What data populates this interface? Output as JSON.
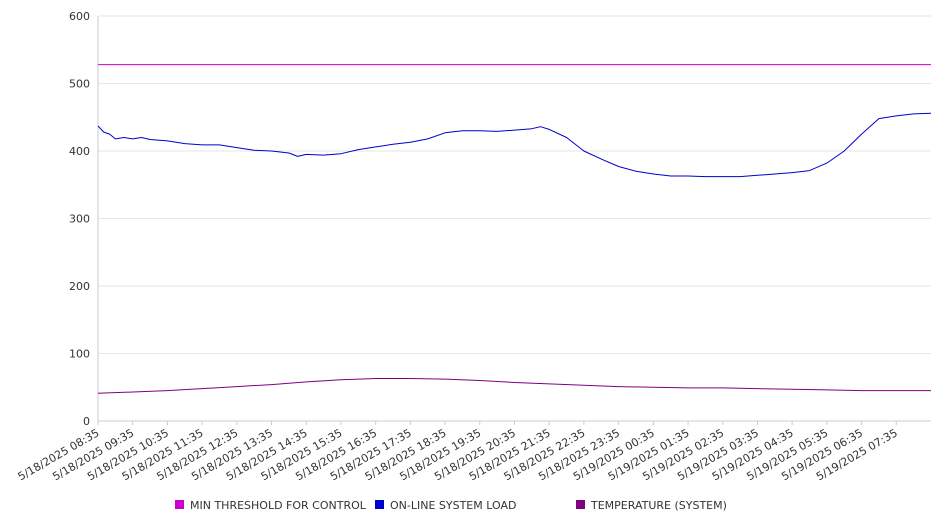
{
  "chart_data": {
    "type": "line",
    "title": "",
    "xlabel": "",
    "ylabel": "",
    "ylim": [
      0,
      600
    ],
    "yticks": [
      0,
      100,
      200,
      300,
      400,
      500,
      600
    ],
    "xlim": [
      "5/18/2025 08:35",
      "5/19/2025 08:35"
    ],
    "x_tick_labels": [
      "5/18/2025 08:35",
      "5/18/2025 09:35",
      "5/18/2025 10:35",
      "5/18/2025 11:35",
      "5/18/2025 12:35",
      "5/18/2025 13:35",
      "5/18/2025 14:35",
      "5/18/2025 15:35",
      "5/18/2025 16:35",
      "5/18/2025 17:35",
      "5/18/2025 18:35",
      "5/18/2025 19:35",
      "5/18/2025 20:35",
      "5/18/2025 21:35",
      "5/18/2025 22:35",
      "5/18/2025 23:35",
      "5/19/2025 00:35",
      "5/19/2025 01:35",
      "5/19/2025 02:35",
      "5/19/2025 03:35",
      "5/19/2025 04:35",
      "5/19/2025 05:35",
      "5/19/2025 06:35",
      "5/19/2025 07:35"
    ],
    "grid": "horizontal",
    "legend_position": "bottom",
    "series": [
      {
        "name": "MIN THRESHOLD FOR CONTROL",
        "color": "#cc00cc",
        "x": [
          "5/18/2025 08:35",
          "5/19/2025 08:35"
        ],
        "y": [
          528,
          528
        ]
      },
      {
        "name": "ON-LINE SYSTEM LOAD",
        "color": "#0000cc",
        "x": [
          "5/18/2025 08:35",
          "5/18/2025 08:45",
          "5/18/2025 08:55",
          "5/18/2025 09:05",
          "5/18/2025 09:20",
          "5/18/2025 09:35",
          "5/18/2025 09:50",
          "5/18/2025 10:05",
          "5/18/2025 10:35",
          "5/18/2025 11:05",
          "5/18/2025 11:35",
          "5/18/2025 12:05",
          "5/18/2025 12:35",
          "5/18/2025 13:05",
          "5/18/2025 13:35",
          "5/18/2025 14:05",
          "5/18/2025 14:20",
          "5/18/2025 14:35",
          "5/18/2025 15:05",
          "5/18/2025 15:35",
          "5/18/2025 16:05",
          "5/18/2025 16:35",
          "5/18/2025 17:05",
          "5/18/2025 17:35",
          "5/18/2025 18:05",
          "5/18/2025 18:35",
          "5/18/2025 19:05",
          "5/18/2025 19:35",
          "5/18/2025 20:05",
          "5/18/2025 20:35",
          "5/18/2025 21:05",
          "5/18/2025 21:20",
          "5/18/2025 21:35",
          "5/18/2025 22:05",
          "5/18/2025 22:35",
          "5/18/2025 23:05",
          "5/18/2025 23:35",
          "5/19/2025 00:05",
          "5/19/2025 00:35",
          "5/19/2025 01:05",
          "5/19/2025 01:35",
          "5/19/2025 02:05",
          "5/19/2025 02:35",
          "5/19/2025 03:05",
          "5/19/2025 03:35",
          "5/19/2025 04:05",
          "5/19/2025 04:35",
          "5/19/2025 05:05",
          "5/19/2025 05:35",
          "5/19/2025 06:05",
          "5/19/2025 06:35",
          "5/19/2025 07:05",
          "5/19/2025 07:35",
          "5/19/2025 08:05",
          "5/19/2025 08:35"
        ],
        "y": [
          437,
          428,
          425,
          418,
          420,
          418,
          420,
          417,
          415,
          411,
          409,
          409,
          405,
          401,
          400,
          397,
          392,
          395,
          394,
          396,
          402,
          406,
          410,
          413,
          418,
          427,
          430,
          430,
          429,
          431,
          433,
          436,
          432,
          420,
          400,
          388,
          377,
          370,
          366,
          363,
          363,
          362,
          362,
          362,
          364,
          366,
          368,
          371,
          382,
          400,
          425,
          448,
          452,
          455,
          456
        ]
      },
      {
        "name": "TEMPERATURE (SYSTEM)",
        "color": "#800080",
        "x": [
          "5/18/2025 08:35",
          "5/18/2025 09:35",
          "5/18/2025 10:35",
          "5/18/2025 11:35",
          "5/18/2025 12:35",
          "5/18/2025 13:35",
          "5/18/2025 14:35",
          "5/18/2025 15:35",
          "5/18/2025 16:35",
          "5/18/2025 17:35",
          "5/18/2025 18:35",
          "5/18/2025 19:35",
          "5/18/2025 20:35",
          "5/18/2025 21:35",
          "5/18/2025 22:35",
          "5/18/2025 23:35",
          "5/19/2025 00:35",
          "5/19/2025 01:35",
          "5/19/2025 02:35",
          "5/19/2025 03:35",
          "5/19/2025 04:35",
          "5/19/2025 05:35",
          "5/19/2025 06:35",
          "5/19/2025 07:35",
          "5/19/2025 08:35"
        ],
        "y": [
          41,
          43,
          45,
          48,
          51,
          54,
          58,
          61,
          63,
          63,
          62,
          60,
          57,
          55,
          53,
          51,
          50,
          49,
          49,
          48,
          47,
          46,
          45,
          45,
          45
        ]
      }
    ]
  }
}
